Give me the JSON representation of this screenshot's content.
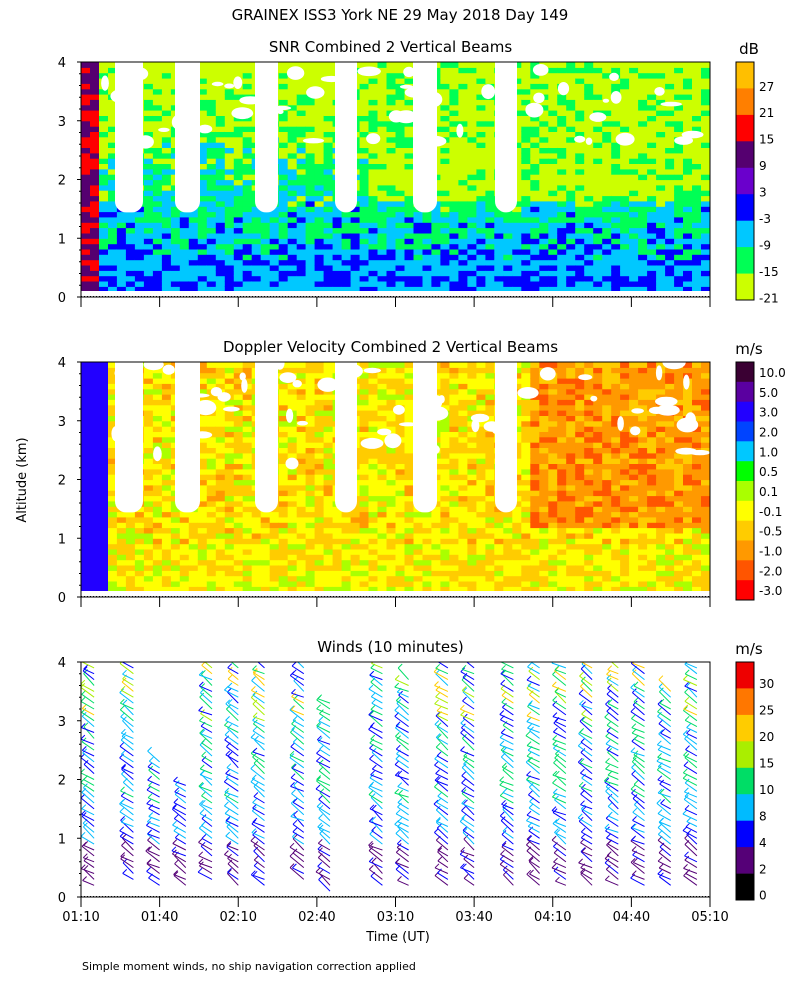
{
  "figure": {
    "title": "GRAINEX ISS3 York NE  29 May 2018 Day 149",
    "ylabel": "Altitude (km)",
    "xlabel": "Time (UT)",
    "footnote": "Simple moment winds, no ship navigation correction applied"
  },
  "chart_data": [
    {
      "type": "heatmap",
      "title": "SNR Combined 2 Vertical Beams",
      "unit": "dB",
      "ylabel": "Altitude (km)",
      "ylim": [
        0,
        4
      ],
      "yticks": [
        "0",
        "1",
        "2",
        "3",
        "4"
      ],
      "xlim": [
        "01:10",
        "05:10"
      ],
      "colorbar": {
        "labels": [
          "27",
          "21",
          "15",
          "9",
          "3",
          "-3",
          "-9",
          "-15",
          "-21"
        ],
        "colors": [
          "#ffbf00",
          "#ff7f00",
          "#ff0000",
          "#550070",
          "#6a00cc",
          "#0000ff",
          "#00c8ff",
          "#00ff55",
          "#ccff00"
        ]
      }
    },
    {
      "type": "heatmap",
      "title": "Doppler Velocity Combined 2 Vertical Beams",
      "unit": "m/s",
      "ylabel": "Altitude (km)",
      "ylim": [
        0,
        4
      ],
      "yticks": [
        "0",
        "1",
        "2",
        "3",
        "4"
      ],
      "xlim": [
        "01:10",
        "05:10"
      ],
      "colorbar": {
        "labels": [
          "10.0",
          "5.0",
          "3.0",
          "2.0",
          "1.0",
          "0.5",
          "0.1",
          "-0.1",
          "-0.5",
          "-1.0",
          "-2.0",
          "-3.0"
        ],
        "colors": [
          "#3a0033",
          "#5a00a0",
          "#2200ff",
          "#0044ff",
          "#00c8ff",
          "#00ff00",
          "#aaff00",
          "#ffff00",
          "#ffcc00",
          "#ff9900",
          "#ff5500",
          "#ff0000"
        ]
      }
    },
    {
      "type": "scatter",
      "title": "Winds (10 minutes)",
      "unit": "m/s",
      "ylabel": "Altitude (km)",
      "ylim": [
        0,
        4
      ],
      "yticks": [
        "0",
        "1",
        "2",
        "3",
        "4"
      ],
      "xlim": [
        "01:10",
        "05:10"
      ],
      "xticks": [
        "01:10",
        "01:40",
        "02:10",
        "02:40",
        "03:10",
        "03:40",
        "04:10",
        "04:40",
        "05:10"
      ],
      "xlabel": "Time (UT)",
      "colorbar": {
        "labels": [
          "30",
          "25",
          "20",
          "15",
          "10",
          "8",
          "4",
          "2",
          "0"
        ],
        "colors": [
          "#ee0000",
          "#ff7700",
          "#ffcc00",
          "#aaee00",
          "#00dd66",
          "#00bbff",
          "#0000ff",
          "#550077",
          "#000000"
        ]
      },
      "profiles": [
        {
          "time": "01:15",
          "top": 4.0,
          "bottom": 0.2
        },
        {
          "time": "01:30",
          "top": 4.2,
          "bottom": 0.3
        },
        {
          "time": "01:40",
          "top": 2.4,
          "bottom": 0.2
        },
        {
          "time": "01:50",
          "top": 2.0,
          "bottom": 0.2
        },
        {
          "time": "02:00",
          "top": 4.0,
          "bottom": 0.3
        },
        {
          "time": "02:10",
          "top": 4.0,
          "bottom": 0.2
        },
        {
          "time": "02:20",
          "top": 4.0,
          "bottom": 0.2
        },
        {
          "time": "02:35",
          "top": 4.0,
          "bottom": 0.3
        },
        {
          "time": "02:45",
          "top": 3.4,
          "bottom": 0.1
        },
        {
          "time": "03:05",
          "top": 4.0,
          "bottom": 0.2
        },
        {
          "time": "03:15",
          "top": 3.8,
          "bottom": 0.2
        },
        {
          "time": "03:30",
          "top": 4.0,
          "bottom": 0.2
        },
        {
          "time": "03:40",
          "top": 4.0,
          "bottom": 0.2
        },
        {
          "time": "03:55",
          "top": 4.0,
          "bottom": 0.2
        },
        {
          "time": "04:05",
          "top": 4.0,
          "bottom": 0.2
        },
        {
          "time": "04:15",
          "top": 4.0,
          "bottom": 0.2
        },
        {
          "time": "04:25",
          "top": 4.0,
          "bottom": 0.2
        },
        {
          "time": "04:35",
          "top": 4.0,
          "bottom": 0.2
        },
        {
          "time": "04:45",
          "top": 4.0,
          "bottom": 0.2
        },
        {
          "time": "04:55",
          "top": 3.6,
          "bottom": 0.2
        },
        {
          "time": "05:05",
          "top": 4.0,
          "bottom": 0.2
        }
      ]
    }
  ]
}
